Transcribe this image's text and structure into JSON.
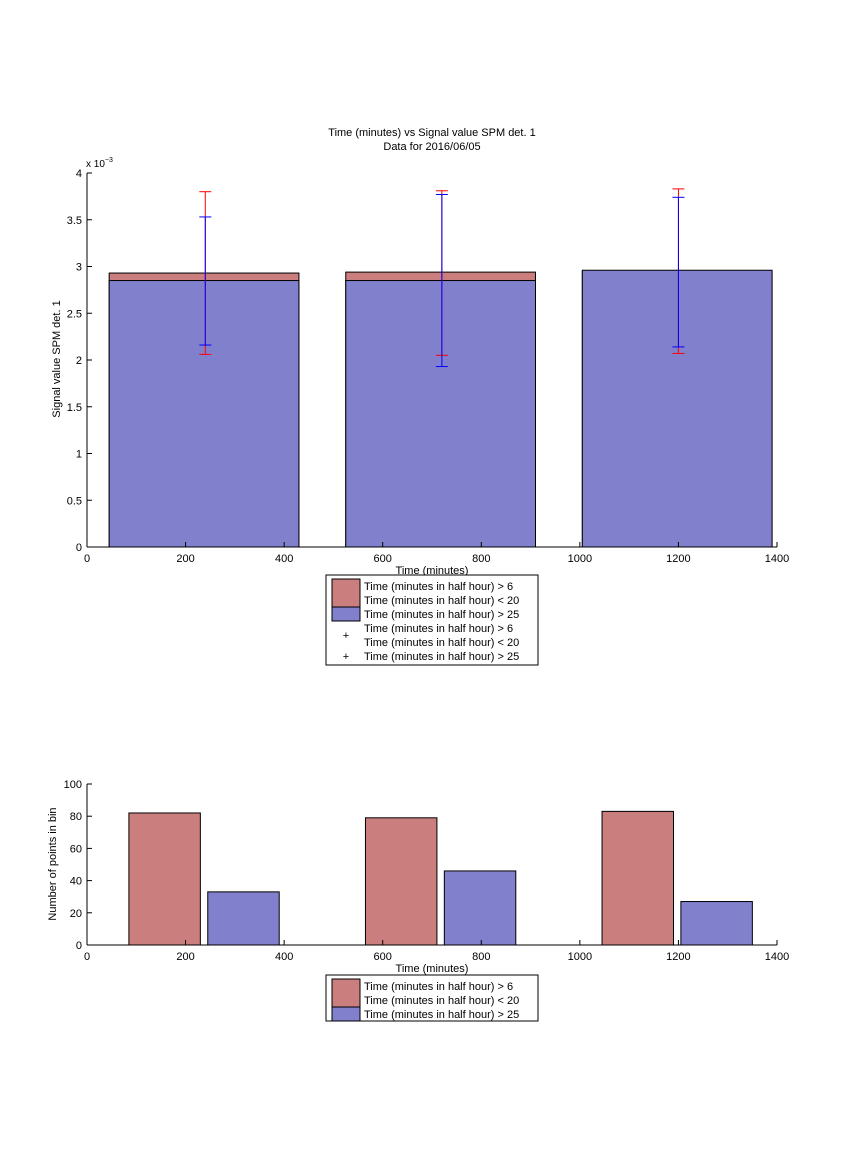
{
  "figure": {
    "background": "#ffffff",
    "colors": {
      "red_fill": "#ca7e7e",
      "blue_fill": "#8080cc",
      "red_error": "#ff0000",
      "blue_error": "#0000ff",
      "axis": "#000000"
    }
  },
  "chart_data": [
    {
      "type": "bar",
      "title": "Time (minutes) vs Signal value SPM det. 1",
      "subtitle": "Data for 2016/06/05",
      "xlabel": "Time (minutes)",
      "ylabel": "Signal value SPM det. 1",
      "y_multiplier": "x 10",
      "y_exponent": "−3",
      "xlim": [
        0,
        1400
      ],
      "ylim": [
        0,
        4
      ],
      "x_ticks": [
        0,
        200,
        400,
        600,
        800,
        1000,
        1200,
        1400
      ],
      "x_tick_labels": [
        "0",
        "200",
        "400",
        "600",
        "800",
        "1000",
        "1200",
        "1400"
      ],
      "y_ticks": [
        0,
        0.5,
        1,
        1.5,
        2,
        2.5,
        3,
        3.5,
        4
      ],
      "y_tick_labels": [
        "0",
        "0.5",
        "1",
        "1.5",
        "2",
        "2.5",
        "3",
        "3.5",
        "4"
      ],
      "grid": false,
      "legend_position": "bottom-center",
      "bins": [
        {
          "x_start": 45,
          "x_end": 430
        },
        {
          "x_start": 525,
          "x_end": 910
        },
        {
          "x_start": 1005,
          "x_end": 1390
        }
      ],
      "series": [
        {
          "name": "Time (minutes in half hour) > 6\nTime (minutes in half hour) < 20",
          "values": [
            2.93,
            2.94,
            2.95
          ],
          "err_x": [
            240,
            720,
            1200
          ],
          "err_low": [
            2.06,
            2.05,
            2.07
          ],
          "err_high": [
            3.8,
            3.81,
            3.83
          ]
        },
        {
          "name": "Time (minutes in half hour) > 25",
          "values": [
            2.85,
            2.85,
            2.96
          ],
          "err_x": [
            240,
            720,
            1200
          ],
          "err_low": [
            2.16,
            1.93,
            2.14
          ],
          "err_high": [
            3.53,
            3.77,
            3.74
          ]
        }
      ],
      "legend": [
        {
          "kind": "patch",
          "series": 0,
          "lines": [
            "Time (minutes in half hour) > 6",
            "Time (minutes in half hour) < 20"
          ]
        },
        {
          "kind": "patch",
          "series": 1,
          "lines": [
            "Time (minutes in half hour) > 25"
          ]
        },
        {
          "kind": "marker",
          "series": 0,
          "lines": [
            "Time (minutes in half hour) > 6",
            "Time (minutes in half hour) < 20"
          ]
        },
        {
          "kind": "marker",
          "series": 1,
          "lines": [
            "Time (minutes in half hour) > 25"
          ]
        }
      ]
    },
    {
      "type": "bar",
      "xlabel": "Time (minutes)",
      "ylabel": "Number of points in bin",
      "xlim": [
        0,
        1400
      ],
      "ylim": [
        0,
        100
      ],
      "x_ticks": [
        0,
        200,
        400,
        600,
        800,
        1000,
        1200,
        1400
      ],
      "x_tick_labels": [
        "0",
        "200",
        "400",
        "600",
        "800",
        "1000",
        "1200",
        "1400"
      ],
      "y_ticks": [
        0,
        20,
        40,
        60,
        80,
        100
      ],
      "y_tick_labels": [
        "0",
        "20",
        "40",
        "60",
        "80",
        "100"
      ],
      "grid": false,
      "legend_position": "bottom-center",
      "series": [
        {
          "name": "Time (minutes in half hour) > 6\nTime (minutes in half hour) < 20",
          "bars": [
            {
              "x_start": 85,
              "x_end": 230,
              "value": 82
            },
            {
              "x_start": 565,
              "x_end": 710,
              "value": 79
            },
            {
              "x_start": 1045,
              "x_end": 1190,
              "value": 83
            }
          ]
        },
        {
          "name": "Time (minutes in half hour) > 25",
          "bars": [
            {
              "x_start": 245,
              "x_end": 390,
              "value": 33
            },
            {
              "x_start": 725,
              "x_end": 870,
              "value": 46
            },
            {
              "x_start": 1205,
              "x_end": 1350,
              "value": 27
            }
          ]
        }
      ],
      "legend": [
        {
          "kind": "patch",
          "series": 0,
          "lines": [
            "Time (minutes in half hour) > 6",
            "Time (minutes in half hour) < 20"
          ]
        },
        {
          "kind": "patch",
          "series": 1,
          "lines": [
            "Time (minutes in half hour) > 25"
          ]
        }
      ]
    }
  ]
}
